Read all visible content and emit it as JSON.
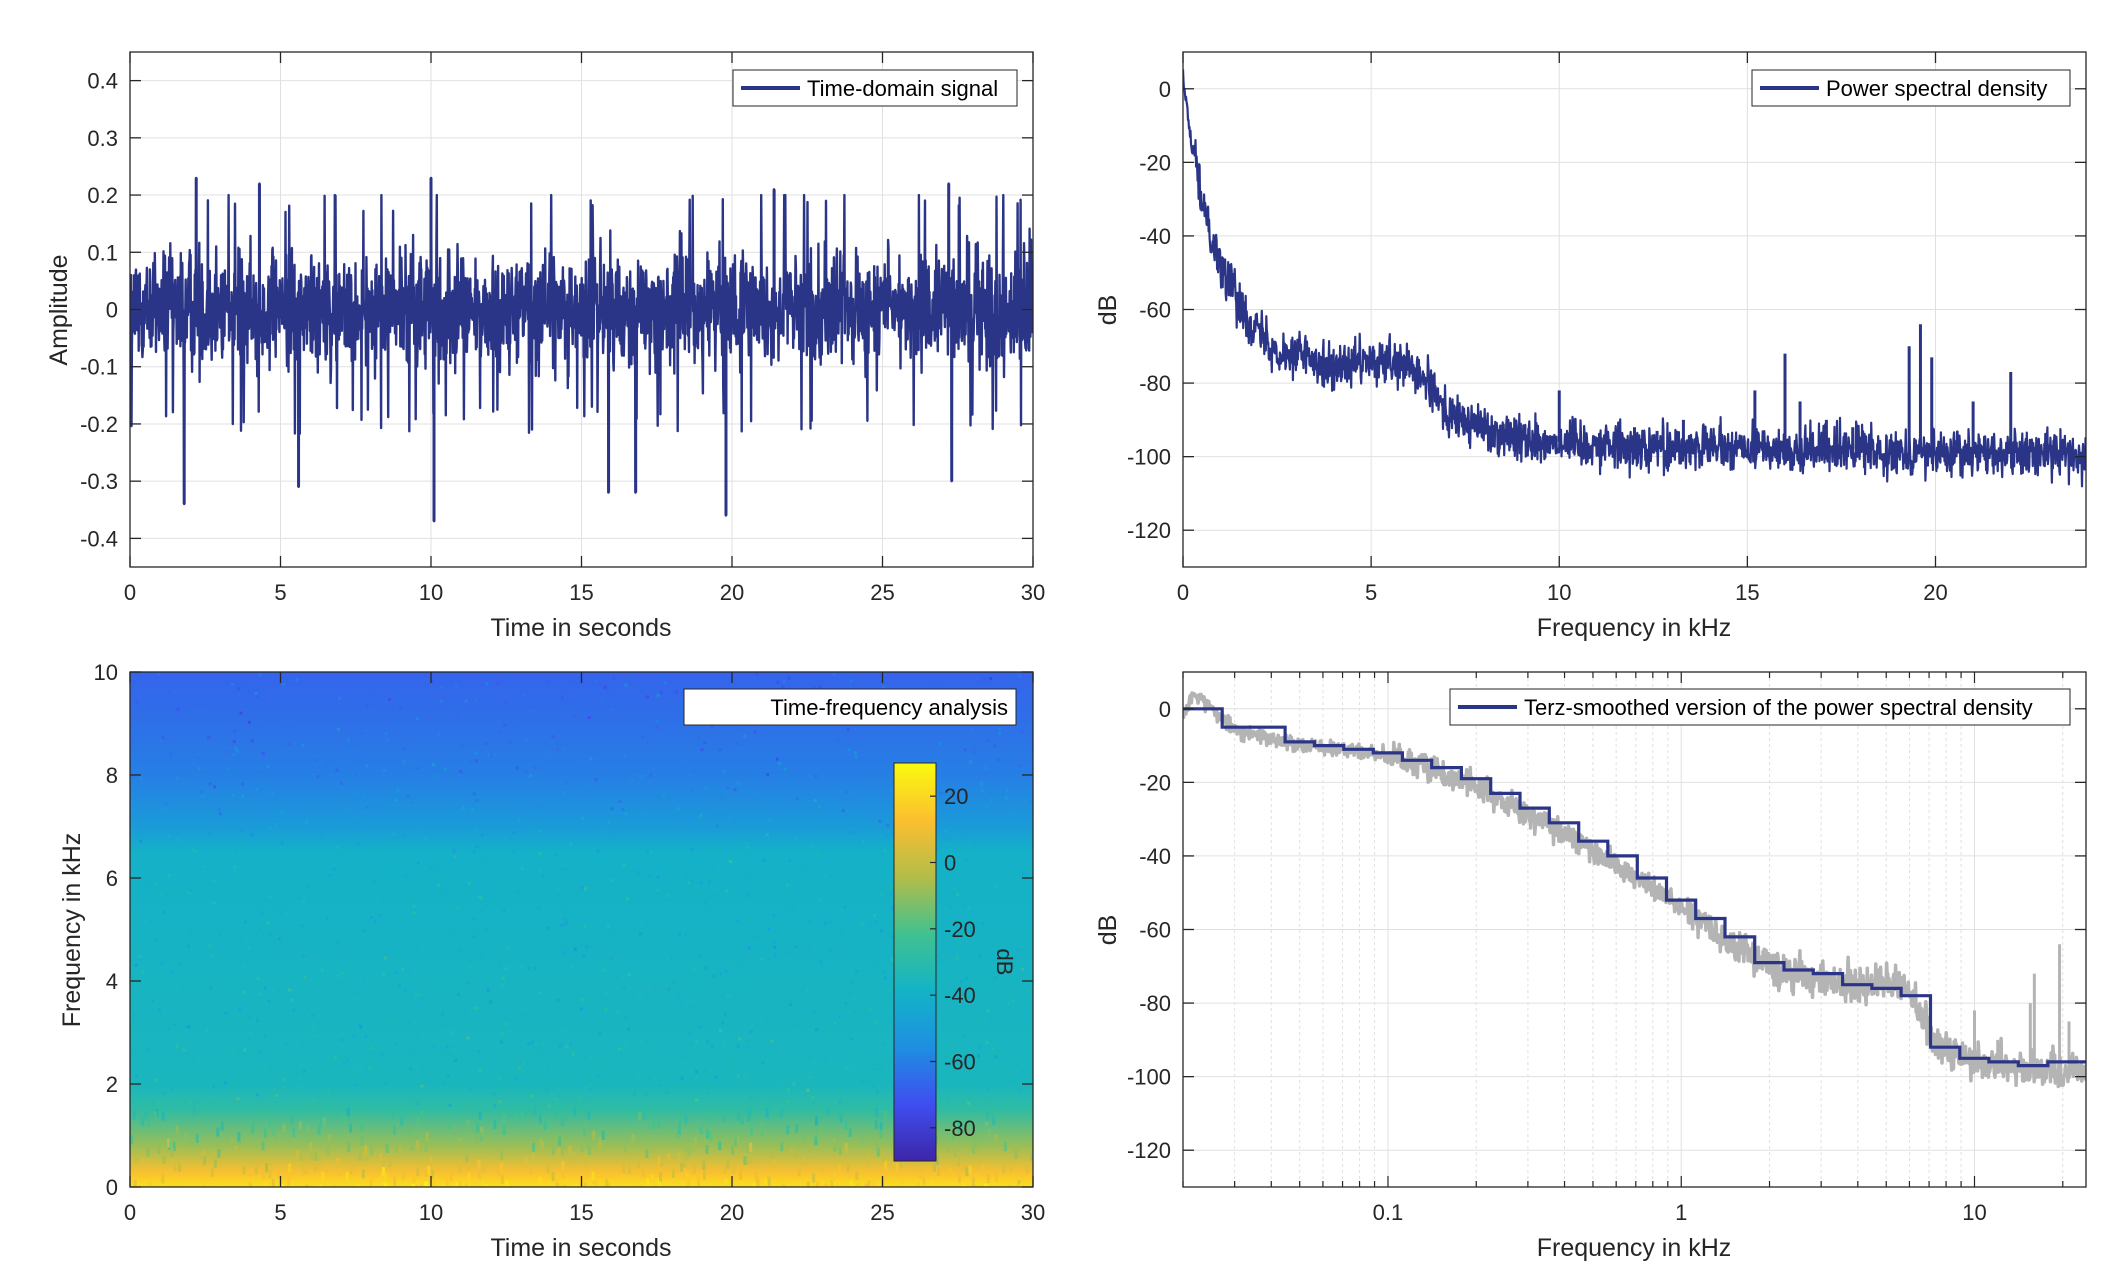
{
  "colors": {
    "series": "#2b3587",
    "raw_psd": "#b4b4b4",
    "grid": "#e0e0e0",
    "axes": "#262626",
    "colormap": [
      "#3e26a8",
      "#3f4ef0",
      "#1e8fe1",
      "#13b4c6",
      "#41c18f",
      "#b3bd48",
      "#fcbf2f",
      "#f9fb0e"
    ]
  },
  "chart_data": [
    {
      "id": "time_domain",
      "type": "line",
      "legend": "Time-domain signal",
      "legend_position": "top-right",
      "xlabel": "Time in seconds",
      "ylabel": "Amplitude",
      "xlim": [
        0,
        30
      ],
      "ylim": [
        -0.45,
        0.45
      ],
      "xticks": [
        "0",
        "5",
        "10",
        "15",
        "20",
        "25",
        "30"
      ],
      "yticks": [
        "-0.4",
        "-0.3",
        "-0.2",
        "-0.1",
        "0",
        "0.1",
        "0.2",
        "0.3",
        "0.4"
      ],
      "grid": true,
      "envelope": {
        "core_amplitude": 0.1,
        "typical_peak": 0.17
      },
      "peaks": [
        {
          "x": 2.2,
          "y": 0.23
        },
        {
          "x": 10.0,
          "y": 0.23
        },
        {
          "x": 27.2,
          "y": 0.22
        },
        {
          "x": 1.8,
          "y": -0.34
        },
        {
          "x": 10.1,
          "y": -0.37
        },
        {
          "x": 19.8,
          "y": -0.36
        },
        {
          "x": 5.6,
          "y": -0.31
        },
        {
          "x": 15.9,
          "y": -0.32
        },
        {
          "x": 16.8,
          "y": -0.32
        },
        {
          "x": 27.3,
          "y": -0.3
        },
        {
          "x": 4.3,
          "y": 0.22
        },
        {
          "x": 21.4,
          "y": 0.21
        }
      ]
    },
    {
      "id": "psd",
      "type": "line",
      "legend": "Power spectral density",
      "legend_position": "top-right",
      "xlabel": "Frequency in kHz",
      "ylabel": "dB",
      "xlim": [
        0,
        24
      ],
      "ylim": [
        -130,
        10
      ],
      "xticks": [
        "0",
        "5",
        "10",
        "15",
        "20"
      ],
      "yticks": [
        "0",
        "-20",
        "-40",
        "-60",
        "-80",
        "-100",
        "-120"
      ],
      "grid": true,
      "trend": [
        {
          "x": 0.0,
          "y": 3
        },
        {
          "x": 0.15,
          "y": -10
        },
        {
          "x": 0.5,
          "y": -30
        },
        {
          "x": 1.0,
          "y": -48
        },
        {
          "x": 1.5,
          "y": -58
        },
        {
          "x": 2.0,
          "y": -66
        },
        {
          "x": 2.5,
          "y": -71
        },
        {
          "x": 3.0,
          "y": -72
        },
        {
          "x": 3.5,
          "y": -73
        },
        {
          "x": 4.0,
          "y": -76
        },
        {
          "x": 5.0,
          "y": -74
        },
        {
          "x": 6.0,
          "y": -76
        },
        {
          "x": 6.5,
          "y": -80
        },
        {
          "x": 7.0,
          "y": -88
        },
        {
          "x": 7.5,
          "y": -91
        },
        {
          "x": 8.0,
          "y": -92
        },
        {
          "x": 9.0,
          "y": -95
        },
        {
          "x": 10.0,
          "y": -96
        },
        {
          "x": 12.0,
          "y": -97
        },
        {
          "x": 15.0,
          "y": -98
        },
        {
          "x": 18.0,
          "y": -98
        },
        {
          "x": 20.0,
          "y": -99
        },
        {
          "x": 24.0,
          "y": -99
        }
      ],
      "spikes": [
        {
          "x": 10.0,
          "y": -82
        },
        {
          "x": 12.0,
          "y": -92
        },
        {
          "x": 12.6,
          "y": -93
        },
        {
          "x": 13.3,
          "y": -90
        },
        {
          "x": 14.0,
          "y": -95
        },
        {
          "x": 15.2,
          "y": -82
        },
        {
          "x": 16.0,
          "y": -72
        },
        {
          "x": 16.4,
          "y": -85
        },
        {
          "x": 17.1,
          "y": -90
        },
        {
          "x": 17.8,
          "y": -92
        },
        {
          "x": 19.3,
          "y": -70
        },
        {
          "x": 19.6,
          "y": -64
        },
        {
          "x": 19.9,
          "y": -73
        },
        {
          "x": 21.0,
          "y": -85
        },
        {
          "x": 22.0,
          "y": -77
        }
      ]
    },
    {
      "id": "spectrogram",
      "type": "heatmap",
      "legend": "Time-frequency analysis",
      "legend_position": "top-right",
      "xlabel": "Time in seconds",
      "ylabel": "Frequency in kHz",
      "xlim": [
        0,
        30
      ],
      "ylim": [
        0,
        10
      ],
      "xticks": [
        "0",
        "5",
        "10",
        "15",
        "20",
        "25",
        "30"
      ],
      "yticks": [
        "0",
        "2",
        "4",
        "6",
        "8",
        "10"
      ],
      "colorbar": {
        "label": "dB",
        "limits": [
          -90,
          30
        ],
        "ticks": [
          "20",
          "0",
          "-20",
          "-40",
          "-60",
          "-80"
        ]
      },
      "level_by_frequency": [
        {
          "f": 0.0,
          "db": 22
        },
        {
          "f": 0.3,
          "db": 12
        },
        {
          "f": 0.8,
          "db": -8
        },
        {
          "f": 1.5,
          "db": -28
        },
        {
          "f": 2.0,
          "db": -36
        },
        {
          "f": 6.5,
          "db": -40
        },
        {
          "f": 7.0,
          "db": -50
        },
        {
          "f": 8.0,
          "db": -60
        },
        {
          "f": 9.0,
          "db": -64
        },
        {
          "f": 10.0,
          "db": -67
        }
      ]
    },
    {
      "id": "terz",
      "type": "line",
      "legend": "Terz-smoothed version of the power spectral density",
      "legend_position": "top-right",
      "xlabel": "Frequency in kHz",
      "ylabel": "dB",
      "xscale": "log",
      "xlim": [
        0.02,
        24
      ],
      "ylim": [
        -130,
        10
      ],
      "xticks": [
        "0.1",
        "1",
        "10"
      ],
      "yticks": [
        "0",
        "-20",
        "-40",
        "-60",
        "-80",
        "-100",
        "-120"
      ],
      "grid": true,
      "steps": [
        {
          "f": 0.02,
          "db": 0
        },
        {
          "f": 0.0272,
          "db": -5
        },
        {
          "f": 0.0446,
          "db": -9
        },
        {
          "f": 0.0561,
          "db": -10
        },
        {
          "f": 0.0707,
          "db": -11
        },
        {
          "f": 0.0891,
          "db": -12
        },
        {
          "f": 0.112,
          "db": -14
        },
        {
          "f": 0.141,
          "db": -16
        },
        {
          "f": 0.178,
          "db": -19
        },
        {
          "f": 0.224,
          "db": -23
        },
        {
          "f": 0.282,
          "db": -27
        },
        {
          "f": 0.355,
          "db": -31
        },
        {
          "f": 0.447,
          "db": -36
        },
        {
          "f": 0.562,
          "db": -40
        },
        {
          "f": 0.708,
          "db": -46
        },
        {
          "f": 0.891,
          "db": -52
        },
        {
          "f": 1.12,
          "db": -57
        },
        {
          "f": 1.41,
          "db": -62
        },
        {
          "f": 1.78,
          "db": -69
        },
        {
          "f": 2.24,
          "db": -71
        },
        {
          "f": 2.82,
          "db": -72
        },
        {
          "f": 3.55,
          "db": -75
        },
        {
          "f": 4.47,
          "db": -76
        },
        {
          "f": 5.62,
          "db": -78
        },
        {
          "f": 7.08,
          "db": -92
        },
        {
          "f": 8.91,
          "db": -95
        },
        {
          "f": 11.2,
          "db": -96
        },
        {
          "f": 14.1,
          "db": -97
        },
        {
          "f": 17.8,
          "db": -96
        },
        {
          "f": 24.0,
          "db": -96
        }
      ],
      "raw": [
        {
          "f": 0.02,
          "db": -2
        },
        {
          "f": 0.022,
          "db": 4
        },
        {
          "f": 0.025,
          "db": 0
        },
        {
          "f": 0.03,
          "db": -6
        },
        {
          "f": 0.04,
          "db": -8
        },
        {
          "f": 0.05,
          "db": -10
        },
        {
          "f": 0.07,
          "db": -11
        },
        {
          "f": 0.1,
          "db": -13
        },
        {
          "f": 0.15,
          "db": -17
        },
        {
          "f": 0.2,
          "db": -21
        },
        {
          "f": 0.3,
          "db": -29
        },
        {
          "f": 0.4,
          "db": -34
        },
        {
          "f": 0.5,
          "db": -39
        },
        {
          "f": 0.7,
          "db": -46
        },
        {
          "f": 1.0,
          "db": -54
        },
        {
          "f": 1.5,
          "db": -64
        },
        {
          "f": 2.0,
          "db": -70
        },
        {
          "f": 3.0,
          "db": -73
        },
        {
          "f": 4.0,
          "db": -76
        },
        {
          "f": 5.0,
          "db": -74
        },
        {
          "f": 6.0,
          "db": -76
        },
        {
          "f": 7.0,
          "db": -89
        },
        {
          "f": 8.0,
          "db": -92
        },
        {
          "f": 10.0,
          "db": -96
        },
        {
          "f": 15.0,
          "db": -98
        },
        {
          "f": 20.0,
          "db": -99
        },
        {
          "f": 24.0,
          "db": -99
        }
      ],
      "raw_spikes": [
        {
          "f": 10.0,
          "db": -82
        },
        {
          "f": 12.0,
          "db": -90
        },
        {
          "f": 15.5,
          "db": -80
        },
        {
          "f": 16.0,
          "db": -72
        },
        {
          "f": 19.5,
          "db": -64
        },
        {
          "f": 21.0,
          "db": -85
        }
      ]
    }
  ]
}
